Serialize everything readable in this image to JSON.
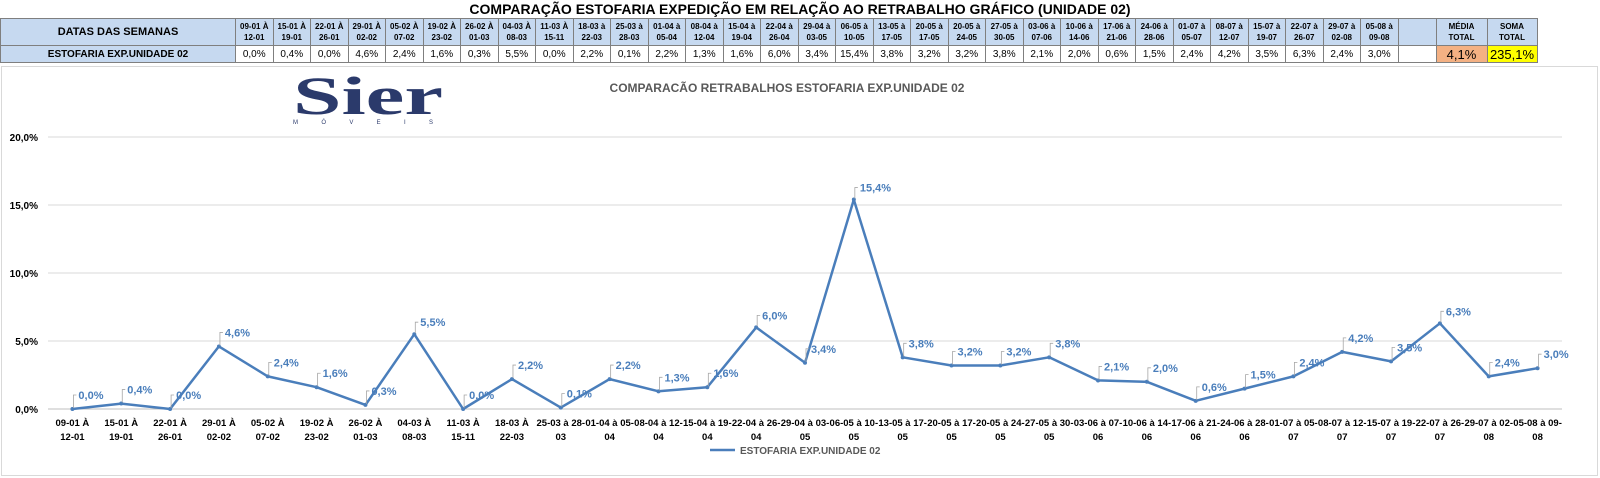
{
  "sheet": {
    "title": "COMPARAÇÃO ESTOFARIA EXPEDIÇÃO  EM RELAÇÃO AO RETRABALHO GRÁFICO (UNIDADE 02)",
    "row1_label": "DATAS DAS SEMANAS",
    "row2_label": "ESTOFARIA EXP.UNIDADE 02",
    "media_label": "MÉDIA TOTAL",
    "soma_label": "SOMA TOTAL",
    "media_value": "4,1%",
    "soma_value": "235,1%",
    "weeks": [
      {
        "start": "09-01 À",
        "end": "12-01",
        "value": "0,0%"
      },
      {
        "start": "15-01 À",
        "end": "19-01",
        "value": "0,4%"
      },
      {
        "start": "22-01 À",
        "end": "26-01",
        "value": "0,0%"
      },
      {
        "start": "29-01 À",
        "end": "02-02",
        "value": "4,6%"
      },
      {
        "start": "05-02 À",
        "end": "07-02",
        "value": "2,4%"
      },
      {
        "start": "19-02 À",
        "end": "23-02",
        "value": "1,6%"
      },
      {
        "start": "26-02 À",
        "end": "01-03",
        "value": "0,3%"
      },
      {
        "start": "04-03 À",
        "end": "08-03",
        "value": "5,5%"
      },
      {
        "start": "11-03 À",
        "end": "15-11",
        "value": "0,0%"
      },
      {
        "start": "18-03 à",
        "end": "22-03",
        "value": "2,2%"
      },
      {
        "start": "25-03 à",
        "end": "28-03",
        "value": "0,1%"
      },
      {
        "start": "01-04 à",
        "end": "05-04",
        "value": "2,2%"
      },
      {
        "start": "08-04 à",
        "end": "12-04",
        "value": "1,3%"
      },
      {
        "start": "15-04 à",
        "end": "19-04",
        "value": "1,6%"
      },
      {
        "start": "22-04 à",
        "end": "26-04",
        "value": "6,0%"
      },
      {
        "start": "29-04 à",
        "end": "03-05",
        "value": "3,4%"
      },
      {
        "start": "06-05 à",
        "end": "10-05",
        "value": "15,4%"
      },
      {
        "start": "13-05 à",
        "end": "17-05",
        "value": "3,8%"
      },
      {
        "start": "20-05 à",
        "end": "17-05",
        "value": "3,2%"
      },
      {
        "start": "20-05 à",
        "end": "24-05",
        "value": "3,2%"
      },
      {
        "start": "27-05 à",
        "end": "30-05",
        "value": "3,8%"
      },
      {
        "start": "03-06 à",
        "end": "07-06",
        "value": "2,1%"
      },
      {
        "start": "10-06 à",
        "end": "14-06",
        "value": "2,0%"
      },
      {
        "start": "17-06 à",
        "end": "21-06",
        "value": "0,6%"
      },
      {
        "start": "24-06 à",
        "end": "28-06",
        "value": "1,5%"
      },
      {
        "start": "01-07 à",
        "end": "05-07",
        "value": "2,4%"
      },
      {
        "start": "08-07 à",
        "end": "12-07",
        "value": "4,2%"
      },
      {
        "start": "15-07 à",
        "end": "19-07",
        "value": "3,5%"
      },
      {
        "start": "22-07 à",
        "end": "26-07",
        "value": "6,3%"
      },
      {
        "start": "29-07 à",
        "end": "02-08",
        "value": "2,4%"
      },
      {
        "start": "05-08 à",
        "end": "09-08",
        "value": "3,0%"
      }
    ]
  },
  "logo": {
    "text": "Sier",
    "subtext": "M Ó V E I S"
  },
  "colors": {
    "line": "#4a7ebb",
    "label": "#4a7ebb",
    "header_fill": "#c6d9f0",
    "media_fill": "#f4b183",
    "soma_fill": "#ffff00",
    "grid": "#d9d9d9"
  },
  "chart_data": {
    "type": "line",
    "title": "COMPARACÃO RETRABALHOS  ESTOFARIA EXP.UNIDADE 02",
    "categories": [
      [
        "09-01 À",
        "12-01"
      ],
      [
        "15-01 À",
        "19-01"
      ],
      [
        "22-01 À",
        "26-01"
      ],
      [
        "29-01 À",
        "02-02"
      ],
      [
        "05-02 À",
        "07-02"
      ],
      [
        "19-02 À",
        "23-02"
      ],
      [
        "26-02 À",
        "01-03"
      ],
      [
        "04-03 À",
        "08-03"
      ],
      [
        "11-03 À",
        "15-11"
      ],
      [
        "18-03 À",
        "22-03"
      ],
      [
        "25-03 à 28-",
        "03"
      ],
      [
        "01-04 à 05-",
        "04"
      ],
      [
        "08-04 à 12-",
        "04"
      ],
      [
        "15-04 à 19-",
        "04"
      ],
      [
        "22-04 à 26-",
        "04"
      ],
      [
        "29-04 à 03-",
        "05"
      ],
      [
        "06-05 à 10-",
        "05"
      ],
      [
        "13-05 à 17-",
        "05"
      ],
      [
        "20-05 à 17-",
        "05"
      ],
      [
        "20-05 à 24-",
        "05"
      ],
      [
        "27-05 à 30-",
        "05"
      ],
      [
        "03-06 à 07-",
        "06"
      ],
      [
        "10-06 à 14-",
        "06"
      ],
      [
        "17-06 à 21-",
        "06"
      ],
      [
        "24-06 à 28-",
        "06"
      ],
      [
        "01-07 à 05-",
        "07"
      ],
      [
        "08-07 à 12-",
        "07"
      ],
      [
        "15-07 à 19-",
        "07"
      ],
      [
        "22-07 à 26-",
        "07"
      ],
      [
        "29-07 à 02-",
        "08"
      ],
      [
        "05-08 à 09-",
        "08"
      ]
    ],
    "series": [
      {
        "name": "ESTOFARIA EXP.UNIDADE 02",
        "values": [
          0.0,
          0.4,
          0.0,
          4.6,
          2.4,
          1.6,
          0.3,
          5.5,
          0.0,
          2.2,
          0.1,
          2.2,
          1.3,
          1.6,
          6.0,
          3.4,
          15.4,
          3.8,
          3.2,
          3.2,
          3.8,
          2.1,
          2.0,
          0.6,
          1.5,
          2.4,
          4.2,
          3.5,
          6.3,
          2.4,
          3.0
        ],
        "labels": [
          "0,0%",
          "0,4%",
          "0,0%",
          "4,6%",
          "2,4%",
          "1,6%",
          "0,3%",
          "5,5%",
          "0,0%",
          "2,2%",
          "0,1%",
          "2,2%",
          "1,3%",
          "1,6%",
          "6,0%",
          "3,4%",
          "15,4%",
          "3,8%",
          "3,2%",
          "3,2%",
          "3,8%",
          "2,1%",
          "2,0%",
          "0,6%",
          "1,5%",
          "2,4%",
          "4,2%",
          "3,5%",
          "6,3%",
          "2,4%",
          "3,0%"
        ]
      }
    ],
    "yticks": [
      "0,0%",
      "5,0%",
      "10,0%",
      "15,0%",
      "20,0%"
    ],
    "ylim": [
      0,
      20
    ],
    "grid": true,
    "legend": "bottom"
  }
}
